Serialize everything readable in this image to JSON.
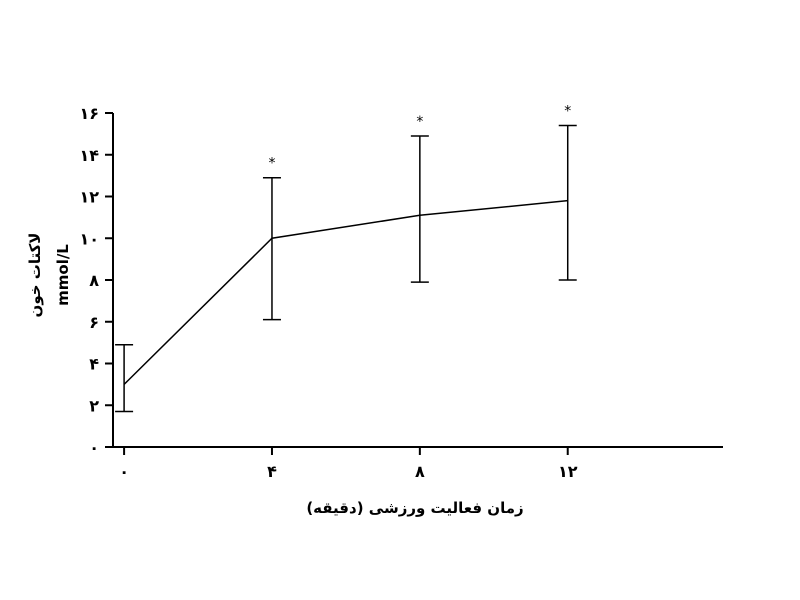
{
  "chart_data": {
    "type": "line",
    "x": [
      0,
      4,
      8,
      12
    ],
    "x_tick_labels": [
      "۰",
      "۴",
      "۸",
      "۱۲"
    ],
    "y_ticks": [
      0,
      2,
      4,
      6,
      8,
      10,
      12,
      14,
      16
    ],
    "y_tick_labels": [
      "۰",
      "۲",
      "۴",
      "۶",
      "۸",
      "۱۰",
      "۱۲",
      "۱۴",
      "۱۶"
    ],
    "ylim": [
      0,
      16
    ],
    "xlim": [
      -0.3,
      16.2
    ],
    "series": [
      {
        "values": [
          3.0,
          10.0,
          11.1,
          11.8
        ],
        "error_low": [
          1.7,
          6.1,
          7.9,
          8.0
        ],
        "error_high": [
          4.9,
          12.9,
          14.9,
          15.4
        ],
        "significance": [
          "",
          "*",
          "*",
          "*"
        ]
      }
    ],
    "ylabel_line1": "لاکتات خون",
    "ylabel_line2": "mmol/L",
    "xlabel": "زمان فعالیت ورزشی (دقیقه)",
    "grid": false,
    "legend": "none"
  }
}
